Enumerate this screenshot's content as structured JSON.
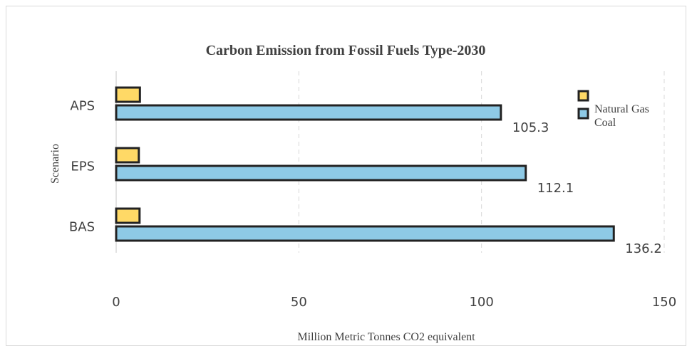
{
  "chart_data": {
    "type": "bar",
    "orientation": "horizontal",
    "title": "Carbon Emission from Fossil Fuels Type-2030",
    "xlabel": "Million Metric Tonnes CO2 equivalent",
    "ylabel": "Scenario",
    "categories": [
      "APS",
      "EPS",
      "BAS"
    ],
    "series": [
      {
        "name": "Natural Gas",
        "values": [
          6.5,
          6.2,
          6.4
        ],
        "color": "#ffd966"
      },
      {
        "name": "Coal",
        "values": [
          105.3,
          112.1,
          136.2
        ],
        "color": "#8ecae6"
      }
    ],
    "data_labels": [
      "105.3",
      "112.1",
      "136.2"
    ],
    "xlim": [
      0,
      150
    ],
    "xticks": [
      "0",
      "50",
      "100",
      "150"
    ],
    "grid": "vertical dashed",
    "legend": "top-right",
    "bar_outline_color": "#222222"
  }
}
